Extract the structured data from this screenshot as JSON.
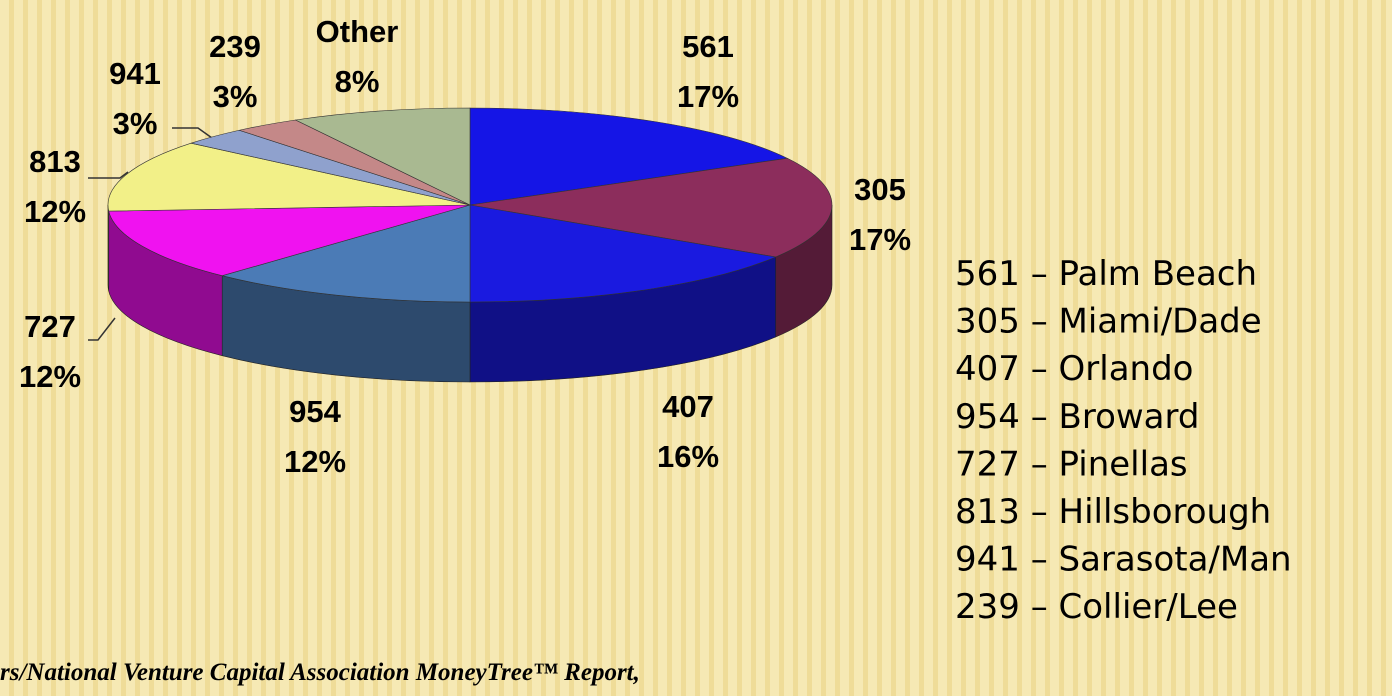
{
  "chart_data": {
    "type": "pie",
    "categories": [
      "561",
      "305",
      "407",
      "954",
      "727",
      "813",
      "941",
      "239",
      "Other"
    ],
    "values": [
      17,
      17,
      16,
      12,
      12,
      12,
      3,
      3,
      8
    ],
    "value_labels": [
      "17%",
      "17%",
      "16%",
      "12%",
      "12%",
      "12%",
      "3%",
      "3%",
      "8%"
    ],
    "colors": [
      "#1515e6",
      "#8c2d5c",
      "#1a1ae0",
      "#4b7bb6",
      "#f012f0",
      "#f2f088",
      "#8fa1cd",
      "#c48888",
      "#a9b991"
    ],
    "key": [
      "561 – Palm Beach",
      "305 – Miami/Dade",
      "407 – Orlando",
      "954 – Broward",
      "727 – Pinellas",
      "813 – Hillsborough",
      "941 – Sarasota/Man",
      "239 – Collier/Lee"
    ],
    "source": "rs/National Venture Capital Association MoneyTree™ Report,"
  }
}
